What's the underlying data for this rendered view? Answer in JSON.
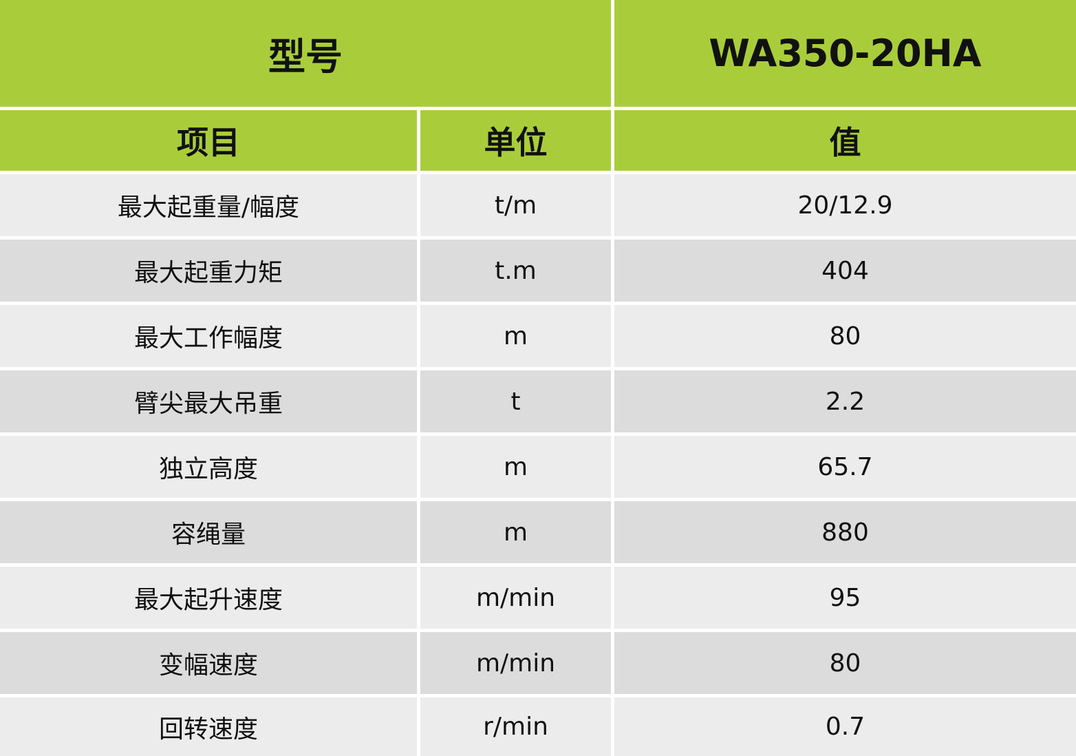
{
  "header": {
    "model_label": "型号",
    "model": "WA350-20HA"
  },
  "table": {
    "columns": [
      "项目",
      "单位",
      "值"
    ],
    "rows": [
      [
        "最大起重量/幅度",
        "t/m",
        "20/12.9"
      ],
      [
        "最大起重力矩",
        "t.m",
        "404"
      ],
      [
        "最大工作幅度",
        "m",
        "80"
      ],
      [
        "臂尖最大吊重",
        "t",
        "2.2"
      ],
      [
        "独立高度",
        "m",
        "65.7"
      ],
      [
        "容绳量",
        "m",
        "880"
      ],
      [
        "最大起升速度",
        "m/min",
        "95"
      ],
      [
        "变幅速度",
        "m/min",
        "80"
      ],
      [
        "回转速度",
        "r/min",
        "0.7"
      ]
    ]
  }
}
